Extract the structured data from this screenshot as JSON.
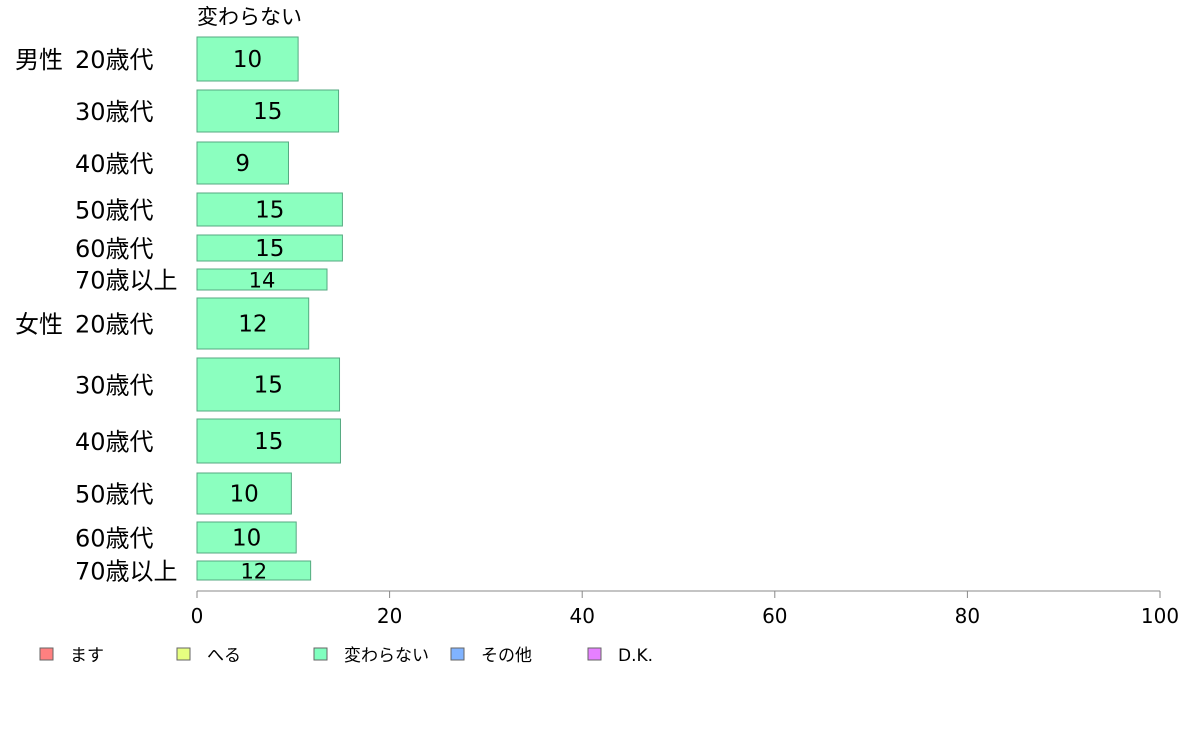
{
  "chart_data": {
    "type": "bar",
    "orientation": "horizontal",
    "title": "",
    "column_header": "変わらない",
    "groups": [
      {
        "label": "男性",
        "categories": [
          "20歳代",
          "30歳代",
          "40歳代",
          "50歳代",
          "60歳代",
          "70歳以上"
        ]
      },
      {
        "label": "女性",
        "categories": [
          "20歳代",
          "30歳代",
          "40歳代",
          "50歳代",
          "60歳代",
          "70歳以上"
        ]
      }
    ],
    "series": [
      {
        "name": "変わらない",
        "values": [
          10.5,
          14.7,
          9.5,
          15.1,
          15.1,
          13.5,
          11.6,
          14.8,
          14.9,
          9.8,
          10.3,
          11.8
        ]
      }
    ],
    "data_labels": [
      "10",
      "15",
      "9",
      "15",
      "15",
      "14",
      "12",
      "15",
      "15",
      "10",
      "10",
      "12"
    ],
    "xlim": [
      0,
      100
    ],
    "x_ticks": [
      "0",
      "20",
      "40",
      "60",
      "80",
      "100"
    ],
    "grid": false,
    "legend": {
      "position": "bottom-left",
      "items": [
        {
          "label": "ます",
          "color": "#ff8080"
        },
        {
          "label": "へる",
          "color": "#e6ff80"
        },
        {
          "label": "変わらない",
          "color": "#80ffbf"
        },
        {
          "label": "その他",
          "color": "#80b3ff"
        },
        {
          "label": "D.K.",
          "color": "#e680ff"
        }
      ]
    },
    "colors": {
      "bar_fill": "#8bffbf",
      "bar_stroke": "#55aa80",
      "axis": "#888888"
    }
  }
}
